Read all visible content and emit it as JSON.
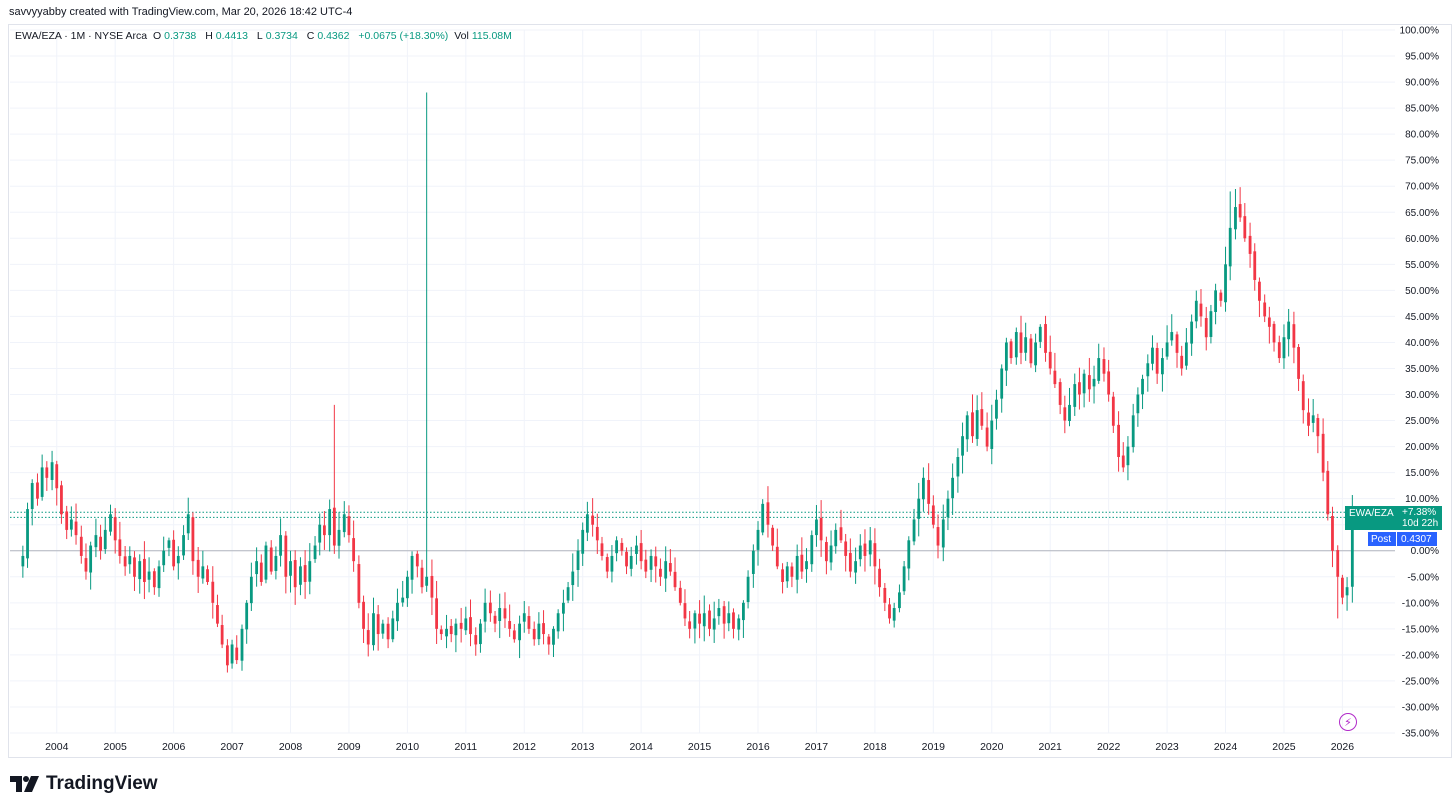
{
  "header": {
    "credit": "savvyyabby created with TradingView.com, Mar 20, 2026 18:42 UTC-4"
  },
  "legend": {
    "symbol": "EWA/EZA · 1M · NYSE Arca",
    "o_label": "O",
    "o_value": "0.3738",
    "h_label": "H",
    "h_value": "0.4413",
    "l_label": "L",
    "l_value": "0.3734",
    "c_label": "C",
    "c_value": "0.4362",
    "change": "+0.0675 (+18.30%)",
    "vol_label": "Vol",
    "vol_value": "115.08M"
  },
  "badges": {
    "symbol": "EWA/EZA",
    "change_pct": "+7.38%",
    "countdown": "10d 22h",
    "post_label": "Post",
    "post_value": "0.4307"
  },
  "logo": {
    "text": "TradingView",
    "icon": "tradingview-logo-icon"
  },
  "colors": {
    "up": "#089981",
    "down": "#f23645",
    "post": "#2962ff",
    "grid": "#f0f3fa",
    "text": "#131722",
    "zero_line": "#b2b5be"
  },
  "chart_data": {
    "type": "candlestick",
    "title": "EWA/EZA · 1M · NYSE Arca",
    "y_scale": "percent",
    "ylim": [
      -35,
      100
    ],
    "y_ticks": [
      "100.00%",
      "95.00%",
      "90.00%",
      "85.00%",
      "80.00%",
      "75.00%",
      "70.00%",
      "65.00%",
      "60.00%",
      "55.00%",
      "50.00%",
      "45.00%",
      "40.00%",
      "35.00%",
      "30.00%",
      "25.00%",
      "20.00%",
      "15.00%",
      "10.00%",
      "5.00%",
      "0.00%",
      "-5.00%",
      "-10.00%",
      "-15.00%",
      "-20.00%",
      "-25.00%",
      "-30.00%",
      "-35.00%"
    ],
    "x_ticks": [
      "2004",
      "2005",
      "2006",
      "2007",
      "2008",
      "2009",
      "2010",
      "2011",
      "2012",
      "2013",
      "2014",
      "2015",
      "2016",
      "2017",
      "2018",
      "2019",
      "2020",
      "2021",
      "2022",
      "2023",
      "2024",
      "2025",
      "2026"
    ],
    "xlim": [
      2003.2,
      2026.9
    ],
    "last_change_pct": 7.38,
    "post_price": 0.4307,
    "dotted_levels_pct": [
      7.4,
      6.4
    ],
    "grid": true,
    "closes_pct": [
      [
        2003.42,
        -1
      ],
      [
        2003.5,
        8
      ],
      [
        2003.58,
        13
      ],
      [
        2003.67,
        10
      ],
      [
        2003.75,
        16
      ],
      [
        2003.83,
        14
      ],
      [
        2003.92,
        17
      ],
      [
        2004.0,
        12
      ],
      [
        2004.08,
        7
      ],
      [
        2004.17,
        4
      ],
      [
        2004.25,
        6
      ],
      [
        2004.33,
        3
      ],
      [
        2004.42,
        -1
      ],
      [
        2004.5,
        -4
      ],
      [
        2004.58,
        1
      ],
      [
        2004.67,
        3
      ],
      [
        2004.75,
        0
      ],
      [
        2004.83,
        4
      ],
      [
        2004.92,
        7
      ],
      [
        2005.0,
        2
      ],
      [
        2005.08,
        -1
      ],
      [
        2005.17,
        -3
      ],
      [
        2005.25,
        -1
      ],
      [
        2005.33,
        -5
      ],
      [
        2005.42,
        -2
      ],
      [
        2005.5,
        -6
      ],
      [
        2005.58,
        -4
      ],
      [
        2005.67,
        -7
      ],
      [
        2005.75,
        -3
      ],
      [
        2005.83,
        0
      ],
      [
        2005.92,
        2
      ],
      [
        2006.0,
        -3
      ],
      [
        2006.08,
        -1
      ],
      [
        2006.17,
        3
      ],
      [
        2006.25,
        7
      ],
      [
        2006.33,
        -2
      ],
      [
        2006.42,
        -5
      ],
      [
        2006.5,
        -3
      ],
      [
        2006.58,
        -6
      ],
      [
        2006.67,
        -10
      ],
      [
        2006.75,
        -14
      ],
      [
        2006.83,
        -18
      ],
      [
        2006.92,
        -22
      ],
      [
        2007.0,
        -18
      ],
      [
        2007.08,
        -21
      ],
      [
        2007.17,
        -15
      ],
      [
        2007.25,
        -10
      ],
      [
        2007.33,
        -5
      ],
      [
        2007.42,
        -2
      ],
      [
        2007.5,
        -6
      ],
      [
        2007.58,
        1
      ],
      [
        2007.67,
        -4
      ],
      [
        2007.75,
        -1
      ],
      [
        2007.83,
        3
      ],
      [
        2007.92,
        -5
      ],
      [
        2008.0,
        -2
      ],
      [
        2008.08,
        -7
      ],
      [
        2008.17,
        -3
      ],
      [
        2008.25,
        -6
      ],
      [
        2008.33,
        -2
      ],
      [
        2008.42,
        1
      ],
      [
        2008.5,
        5
      ],
      [
        2008.58,
        3
      ],
      [
        2008.67,
        8
      ],
      [
        2008.75,
        1
      ],
      [
        2008.83,
        4
      ],
      [
        2008.92,
        7
      ],
      [
        2009.0,
        3
      ],
      [
        2009.08,
        -2
      ],
      [
        2009.17,
        -10
      ],
      [
        2009.25,
        -15
      ],
      [
        2009.33,
        -18
      ],
      [
        2009.42,
        -12
      ],
      [
        2009.5,
        -16
      ],
      [
        2009.58,
        -14
      ],
      [
        2009.67,
        -17
      ],
      [
        2009.75,
        -13
      ],
      [
        2009.83,
        -10
      ],
      [
        2009.92,
        -9
      ],
      [
        2010.0,
        -5
      ],
      [
        2010.08,
        -1
      ],
      [
        2010.17,
        -3
      ],
      [
        2010.25,
        -7
      ],
      [
        2010.33,
        -5
      ],
      [
        2010.42,
        -9
      ],
      [
        2010.5,
        -15
      ],
      [
        2010.58,
        -16
      ],
      [
        2010.67,
        -15
      ],
      [
        2010.75,
        -16
      ],
      [
        2010.83,
        -14
      ],
      [
        2010.92,
        -15
      ],
      [
        2011.0,
        -13
      ],
      [
        2011.08,
        -16
      ],
      [
        2011.17,
        -18
      ],
      [
        2011.25,
        -14
      ],
      [
        2011.33,
        -10
      ],
      [
        2011.42,
        -12
      ],
      [
        2011.5,
        -14
      ],
      [
        2011.58,
        -11
      ],
      [
        2011.67,
        -13
      ],
      [
        2011.75,
        -15
      ],
      [
        2011.83,
        -17
      ],
      [
        2011.92,
        -14
      ],
      [
        2012.0,
        -12
      ],
      [
        2012.08,
        -15
      ],
      [
        2012.17,
        -17
      ],
      [
        2012.25,
        -14
      ],
      [
        2012.33,
        -16
      ],
      [
        2012.42,
        -18
      ],
      [
        2012.5,
        -15
      ],
      [
        2012.58,
        -12
      ],
      [
        2012.67,
        -10
      ],
      [
        2012.75,
        -7
      ],
      [
        2012.83,
        -4
      ],
      [
        2012.92,
        0
      ],
      [
        2013.0,
        4
      ],
      [
        2013.08,
        7
      ],
      [
        2013.17,
        5
      ],
      [
        2013.25,
        2
      ],
      [
        2013.33,
        -1
      ],
      [
        2013.42,
        -4
      ],
      [
        2013.5,
        -1
      ],
      [
        2013.58,
        2
      ],
      [
        2013.67,
        0
      ],
      [
        2013.75,
        -3
      ],
      [
        2013.83,
        -1
      ],
      [
        2013.92,
        1
      ],
      [
        2014.0,
        -2
      ],
      [
        2014.08,
        -4
      ],
      [
        2014.17,
        -1
      ],
      [
        2014.25,
        -3
      ],
      [
        2014.33,
        -5
      ],
      [
        2014.42,
        -2
      ],
      [
        2014.5,
        -4
      ],
      [
        2014.58,
        -7
      ],
      [
        2014.67,
        -10
      ],
      [
        2014.75,
        -13
      ],
      [
        2014.83,
        -15
      ],
      [
        2014.92,
        -12
      ],
      [
        2015.0,
        -14
      ],
      [
        2015.08,
        -12
      ],
      [
        2015.17,
        -15
      ],
      [
        2015.25,
        -13
      ],
      [
        2015.33,
        -11
      ],
      [
        2015.42,
        -14
      ],
      [
        2015.5,
        -12
      ],
      [
        2015.58,
        -15
      ],
      [
        2015.67,
        -13
      ],
      [
        2015.75,
        -10
      ],
      [
        2015.83,
        -5
      ],
      [
        2015.92,
        0
      ],
      [
        2016.0,
        4
      ],
      [
        2016.08,
        9
      ],
      [
        2016.17,
        5
      ],
      [
        2016.25,
        1
      ],
      [
        2016.33,
        -3
      ],
      [
        2016.42,
        -6
      ],
      [
        2016.5,
        -3
      ],
      [
        2016.58,
        -5
      ],
      [
        2016.67,
        -1
      ],
      [
        2016.75,
        -4
      ],
      [
        2016.83,
        -2
      ],
      [
        2016.92,
        3
      ],
      [
        2017.0,
        6
      ],
      [
        2017.08,
        2
      ],
      [
        2017.17,
        -2
      ],
      [
        2017.25,
        1
      ],
      [
        2017.33,
        4
      ],
      [
        2017.42,
        2
      ],
      [
        2017.5,
        -1
      ],
      [
        2017.58,
        -4
      ],
      [
        2017.67,
        -2
      ],
      [
        2017.75,
        1
      ],
      [
        2017.83,
        -1
      ],
      [
        2017.92,
        2
      ],
      [
        2018.0,
        -3
      ],
      [
        2018.08,
        -7
      ],
      [
        2018.17,
        -10
      ],
      [
        2018.25,
        -13
      ],
      [
        2018.33,
        -11
      ],
      [
        2018.42,
        -8
      ],
      [
        2018.5,
        -3
      ],
      [
        2018.58,
        2
      ],
      [
        2018.67,
        6
      ],
      [
        2018.75,
        10
      ],
      [
        2018.83,
        14
      ],
      [
        2018.92,
        9
      ],
      [
        2019.0,
        5
      ],
      [
        2019.08,
        1
      ],
      [
        2019.17,
        6
      ],
      [
        2019.25,
        10
      ],
      [
        2019.33,
        14
      ],
      [
        2019.42,
        18
      ],
      [
        2019.5,
        22
      ],
      [
        2019.58,
        26
      ],
      [
        2019.67,
        22
      ],
      [
        2019.75,
        27
      ],
      [
        2019.83,
        24
      ],
      [
        2019.92,
        20
      ],
      [
        2020.0,
        25
      ],
      [
        2020.08,
        29
      ],
      [
        2020.17,
        35
      ],
      [
        2020.25,
        40
      ],
      [
        2020.33,
        37
      ],
      [
        2020.42,
        42
      ],
      [
        2020.5,
        38
      ],
      [
        2020.58,
        41
      ],
      [
        2020.67,
        36
      ],
      [
        2020.75,
        40
      ],
      [
        2020.83,
        43
      ],
      [
        2020.92,
        38
      ],
      [
        2021.0,
        35
      ],
      [
        2021.08,
        32
      ],
      [
        2021.17,
        28
      ],
      [
        2021.25,
        25
      ],
      [
        2021.33,
        28
      ],
      [
        2021.42,
        32
      ],
      [
        2021.5,
        30
      ],
      [
        2021.58,
        34
      ],
      [
        2021.67,
        31
      ],
      [
        2021.75,
        33
      ],
      [
        2021.83,
        37
      ],
      [
        2021.92,
        34
      ],
      [
        2022.0,
        30
      ],
      [
        2022.08,
        24
      ],
      [
        2022.17,
        18
      ],
      [
        2022.25,
        16
      ],
      [
        2022.33,
        20
      ],
      [
        2022.42,
        26
      ],
      [
        2022.5,
        30
      ],
      [
        2022.58,
        33
      ],
      [
        2022.67,
        36
      ],
      [
        2022.75,
        39
      ],
      [
        2022.83,
        34
      ],
      [
        2022.92,
        37
      ],
      [
        2023.0,
        40
      ],
      [
        2023.08,
        42
      ],
      [
        2023.17,
        38
      ],
      [
        2023.25,
        35
      ],
      [
        2023.33,
        40
      ],
      [
        2023.42,
        44
      ],
      [
        2023.5,
        48
      ],
      [
        2023.58,
        45
      ],
      [
        2023.67,
        41
      ],
      [
        2023.75,
        46
      ],
      [
        2023.83,
        50
      ],
      [
        2023.92,
        48
      ],
      [
        2024.0,
        55
      ],
      [
        2024.08,
        62
      ],
      [
        2024.17,
        66
      ],
      [
        2024.25,
        64
      ],
      [
        2024.33,
        60
      ],
      [
        2024.42,
        57
      ],
      [
        2024.5,
        52
      ],
      [
        2024.58,
        48
      ],
      [
        2024.67,
        45
      ],
      [
        2024.75,
        43
      ],
      [
        2024.83,
        40
      ],
      [
        2024.92,
        37
      ],
      [
        2025.0,
        41
      ],
      [
        2025.08,
        44
      ],
      [
        2025.17,
        39
      ],
      [
        2025.25,
        33
      ],
      [
        2025.33,
        27
      ],
      [
        2025.42,
        24
      ],
      [
        2025.5,
        26
      ],
      [
        2025.58,
        22
      ],
      [
        2025.67,
        15
      ],
      [
        2025.75,
        7
      ],
      [
        2025.83,
        0
      ],
      [
        2025.92,
        -5
      ],
      [
        2026.0,
        -9
      ],
      [
        2026.08,
        -7
      ],
      [
        2026.17,
        7.4
      ]
    ],
    "notable_wicks_pct": [
      {
        "x": 2008.75,
        "high": 28
      },
      {
        "x": 2010.33,
        "high": 88
      },
      {
        "x": 2024.08,
        "high": 69
      },
      {
        "x": 2025.92,
        "low": -13
      }
    ]
  }
}
